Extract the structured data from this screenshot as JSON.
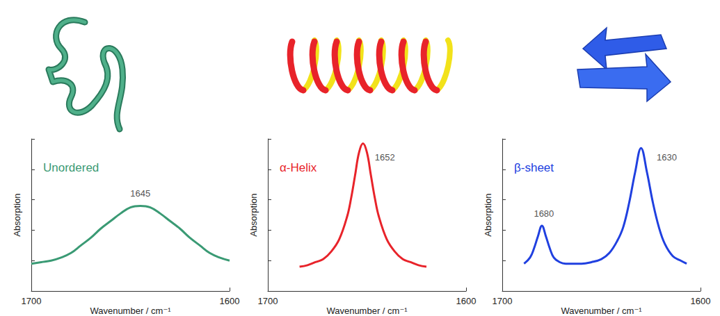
{
  "chart_data": [
    {
      "type": "line",
      "title": "Unordered",
      "color": "#3a9a74",
      "x": [
        1700,
        1695,
        1690,
        1685,
        1680,
        1675,
        1670,
        1665,
        1660,
        1655,
        1650,
        1645,
        1640,
        1635,
        1630,
        1625,
        1620,
        1615,
        1610,
        1605,
        1600
      ],
      "values": [
        0.18,
        0.19,
        0.2,
        0.22,
        0.25,
        0.3,
        0.35,
        0.41,
        0.46,
        0.51,
        0.55,
        0.56,
        0.55,
        0.51,
        0.46,
        0.41,
        0.35,
        0.3,
        0.25,
        0.22,
        0.2
      ],
      "xlim": [
        1700,
        1600
      ],
      "xticks": [
        1700,
        1600
      ],
      "ylim": [
        0,
        1
      ],
      "yticks": [
        0,
        0.2,
        0.4,
        0.6,
        0.8,
        1
      ],
      "tick_labels": "x",
      "grid": false,
      "x_label": "Wavenumber / cm⁻¹",
      "y_label": "Absorption",
      "annotations": [
        {
          "text": "1645",
          "x": 1645,
          "y": 0.64
        }
      ]
    },
    {
      "type": "line",
      "title": "α-Helix",
      "color": "#e8232a",
      "x": [
        1684,
        1680,
        1676,
        1672,
        1668,
        1664,
        1660,
        1658,
        1656,
        1654,
        1652,
        1650,
        1648,
        1646,
        1644,
        1640,
        1636,
        1632,
        1628,
        1624,
        1620
      ],
      "values": [
        0.16,
        0.17,
        0.19,
        0.21,
        0.26,
        0.34,
        0.49,
        0.61,
        0.76,
        0.91,
        0.97,
        0.91,
        0.76,
        0.61,
        0.49,
        0.34,
        0.26,
        0.21,
        0.19,
        0.17,
        0.16
      ],
      "xlim": [
        1700,
        1600
      ],
      "xticks": [
        1700,
        1600
      ],
      "ylim": [
        0,
        1
      ],
      "yticks": [
        0,
        0.2,
        0.4,
        0.6,
        0.8,
        1
      ],
      "tick_labels": "x",
      "grid": false,
      "x_label": "Wavenumber / cm⁻¹",
      "y_label": "Absorption",
      "annotations": [
        {
          "text": "1652",
          "x": 1641,
          "y": 0.88
        }
      ]
    },
    {
      "type": "line",
      "title": "β-sheet",
      "color": "#2040e0",
      "x": [
        1689,
        1686,
        1684,
        1682,
        1680,
        1678,
        1676,
        1674,
        1671,
        1668,
        1660,
        1655,
        1650,
        1646,
        1642,
        1639,
        1636,
        1633,
        1630,
        1627,
        1624,
        1621,
        1618,
        1614,
        1610,
        1607
      ],
      "values": [
        0.18,
        0.22,
        0.28,
        0.36,
        0.43,
        0.36,
        0.28,
        0.22,
        0.19,
        0.18,
        0.18,
        0.19,
        0.21,
        0.25,
        0.33,
        0.42,
        0.58,
        0.78,
        0.94,
        0.78,
        0.58,
        0.42,
        0.31,
        0.23,
        0.2,
        0.18
      ],
      "xlim": [
        1700,
        1600
      ],
      "xticks": [
        1700,
        1600
      ],
      "ylim": [
        0,
        1
      ],
      "yticks": [
        0,
        0.2,
        0.4,
        0.6,
        0.8,
        1
      ],
      "tick_labels": "x",
      "grid": false,
      "x_label": "Wavenumber / cm⁻¹",
      "y_label": "Absorption",
      "annotations": [
        {
          "text": "1680",
          "x": 1679,
          "y": 0.51
        },
        {
          "text": "1630",
          "x": 1617,
          "y": 0.88
        }
      ]
    }
  ]
}
